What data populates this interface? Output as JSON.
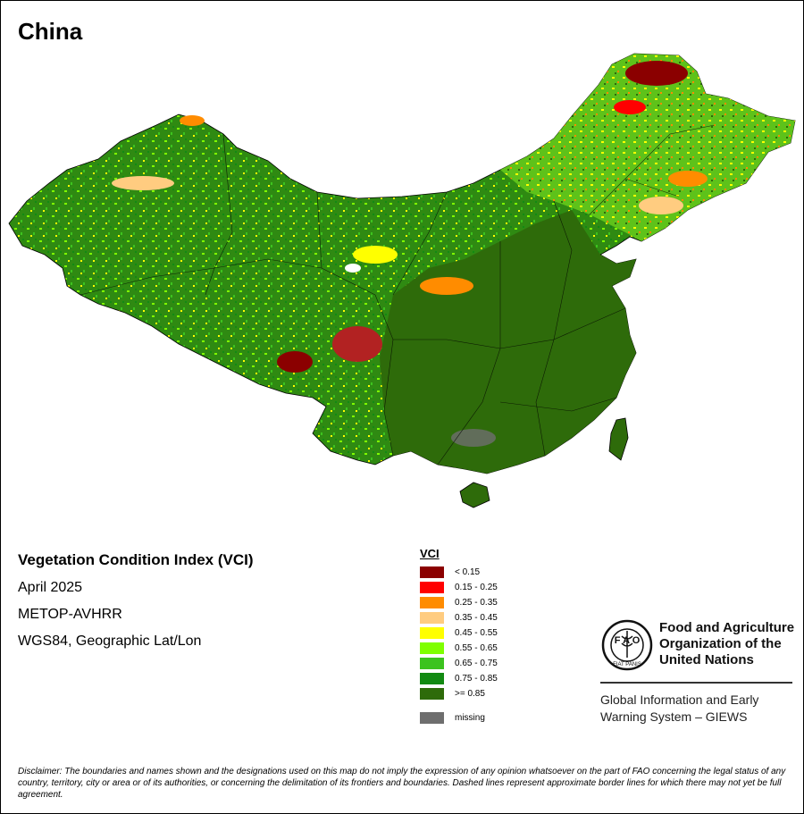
{
  "map_title": "China",
  "info": {
    "index_name": "Vegetation Condition Index (VCI)",
    "date": "April 2025",
    "sensor": "METOP-AVHRR",
    "projection": "WGS84, Geographic Lat/Lon"
  },
  "legend": {
    "title": "VCI",
    "classes": [
      {
        "label": "< 0.15",
        "color": "#8b0000"
      },
      {
        "label": "0.15 - 0.25",
        "color": "#ff0000"
      },
      {
        "label": "0.25 - 0.35",
        "color": "#ff8c00"
      },
      {
        "label": "0.35 - 0.45",
        "color": "#ffcc80"
      },
      {
        "label": "0.45 - 0.55",
        "color": "#ffff00"
      },
      {
        "label": "0.55 - 0.65",
        "color": "#7fff00"
      },
      {
        "label": "0.65 - 0.75",
        "color": "#3cc31e"
      },
      {
        "label": "0.75 - 0.85",
        "color": "#128a12"
      },
      {
        "label": ">= 0.85",
        "color": "#2e6b0a"
      }
    ],
    "missing": {
      "label": "missing",
      "color": "#6e6e6e"
    }
  },
  "organization": {
    "logo_text": "FAO FIAT PANIS",
    "name": "Food and Agriculture Organization of the United Nations",
    "system": "Global Information and Early Warning System – GIEWS"
  },
  "disclaimer": "Disclaimer: The boundaries and names shown and the designations used on this map do not imply the expression of any opinion whatsoever on the part of FAO concerning the legal status of any country, territory, city or area or of its authorities, or concerning the delimitation of its frontiers and boundaries. Dashed lines represent approximate border lines for which there may not yet be full agreement."
}
